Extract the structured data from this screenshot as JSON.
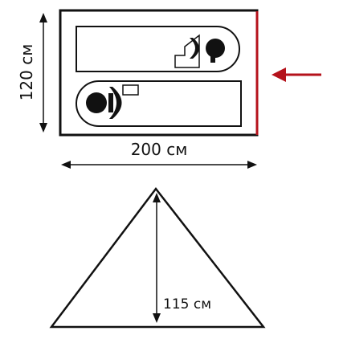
{
  "footprint": {
    "width_label": "200 см",
    "depth_label": "120 см"
  },
  "profile": {
    "height_label": "115 см"
  },
  "colors": {
    "line": "#111111",
    "entrance": "#b5121b"
  },
  "icons": {
    "entrance_arrow": "arrow-left-icon"
  }
}
